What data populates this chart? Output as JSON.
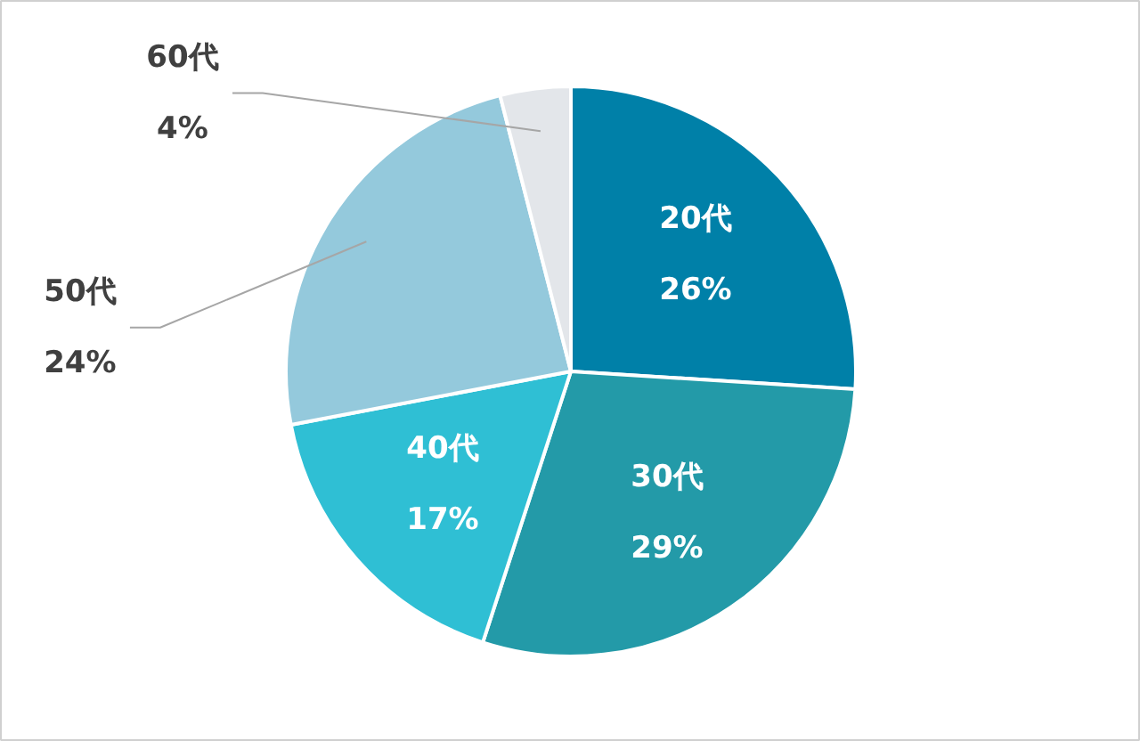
{
  "chart_data": {
    "type": "pie",
    "categories": [
      "20代",
      "30代",
      "40代",
      "50代",
      "60代"
    ],
    "values": [
      26,
      29,
      17,
      24,
      4
    ],
    "colors": [
      "#0080a8",
      "#239aa8",
      "#2fbfd4",
      "#94c9dc",
      "#e3e6ea"
    ],
    "value_labels": [
      "26%",
      "29%",
      "17%",
      "24%",
      "4%"
    ]
  }
}
